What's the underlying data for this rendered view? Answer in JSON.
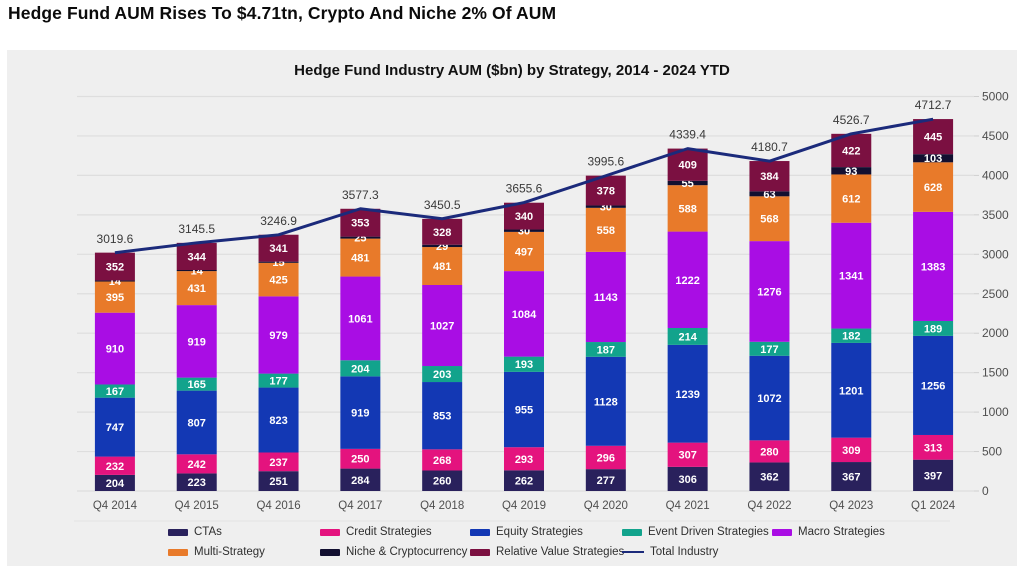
{
  "header": {
    "title": "Hedge Fund AUM  Rises To $4.71tn, Crypto And Niche 2% Of AUM"
  },
  "chart": {
    "title": "Hedge Fund Industry AUM ($bn) by Strategy, 2014 - 2024 YTD"
  },
  "chart_data": {
    "type": "bar",
    "stacked": true,
    "title": "Hedge Fund Industry AUM ($bn) by Strategy, 2014 - 2024 YTD",
    "categories": [
      "Q4 2014",
      "Q4 2015",
      "Q4 2016",
      "Q4 2017",
      "Q4 2018",
      "Q4 2019",
      "Q4 2020",
      "Q4 2021",
      "Q4 2022",
      "Q4 2023",
      "Q1 2024"
    ],
    "series": [
      {
        "name": "CTAs",
        "color": "#29215c",
        "values": [
          204,
          223,
          251,
          284,
          260,
          262,
          277,
          306,
          362,
          367,
          397
        ]
      },
      {
        "name": "Credit Strategies",
        "color": "#e4137e",
        "values": [
          232,
          242,
          237,
          250,
          268,
          293,
          296,
          307,
          280,
          309,
          313
        ]
      },
      {
        "name": "Equity Strategies",
        "color": "#1338b4",
        "values": [
          747,
          807,
          823,
          919,
          853,
          955,
          1128,
          1239,
          1072,
          1201,
          1256
        ]
      },
      {
        "name": "Event Driven Strategies",
        "color": "#12a38c",
        "values": [
          167,
          165,
          177,
          204,
          203,
          193,
          187,
          214,
          177,
          182,
          189
        ]
      },
      {
        "name": "Macro Strategies",
        "color": "#a90de4",
        "values": [
          910,
          919,
          979,
          1061,
          1027,
          1084,
          1143,
          1222,
          1276,
          1341,
          1383
        ]
      },
      {
        "name": "Multi-Strategy",
        "color": "#e87a2a",
        "values": [
          395,
          431,
          425,
          481,
          481,
          497,
          558,
          588,
          568,
          612,
          628
        ]
      },
      {
        "name": "Niche & Cryptocurrency",
        "color": "#120f30",
        "values": [
          14,
          14,
          15,
          25,
          29,
          30,
          30,
          55,
          63,
          93,
          103
        ]
      },
      {
        "name": "Relative Value Strategies",
        "color": "#7b1041",
        "values": [
          352,
          344,
          341,
          353,
          328,
          340,
          378,
          409,
          384,
          422,
          445
        ]
      }
    ],
    "line_series": {
      "name": "Total Industry",
      "color": "#1b2a7b",
      "values": [
        3019.6,
        3145.5,
        3246.9,
        3577.3,
        3450.5,
        3655.6,
        3995.6,
        4339.4,
        4180.7,
        4526.7,
        4712.7
      ]
    },
    "y_axis": {
      "min": 0,
      "max": 5000,
      "step": 500,
      "side": "right",
      "ticks": [
        "0",
        "500",
        "1000",
        "1500",
        "2000",
        "2500",
        "3000",
        "3500",
        "4000",
        "4500",
        "5000"
      ]
    },
    "grid": true,
    "legend_position": "bottom"
  }
}
